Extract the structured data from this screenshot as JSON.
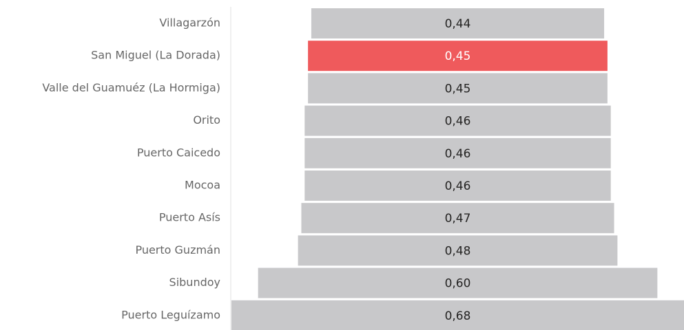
{
  "chart_data": {
    "type": "funnel",
    "categories": [
      "Villagarzón",
      "San Miguel (La Dorada)",
      "Valle del Guamuéz (La Hormiga)",
      "Orito",
      "Puerto Caicedo",
      "Mocoa",
      "Puerto Asís",
      "Puerto Guzmán",
      "Sibundoy",
      "Puerto Leguízamo"
    ],
    "values": [
      0.44,
      0.45,
      0.45,
      0.46,
      0.46,
      0.46,
      0.47,
      0.48,
      0.6,
      0.68
    ],
    "value_labels": [
      "0,44",
      "0,45",
      "0,45",
      "0,46",
      "0,46",
      "0,46",
      "0,47",
      "0,48",
      "0,60",
      "0,68"
    ],
    "colors": [
      "#c8c8ca",
      "#ef5a5c",
      "#c8c8ca",
      "#c8c8ca",
      "#c8c8ca",
      "#c8c8ca",
      "#c8c8ca",
      "#c8c8ca",
      "#c8c8ca",
      "#c8c8ca"
    ]
  }
}
